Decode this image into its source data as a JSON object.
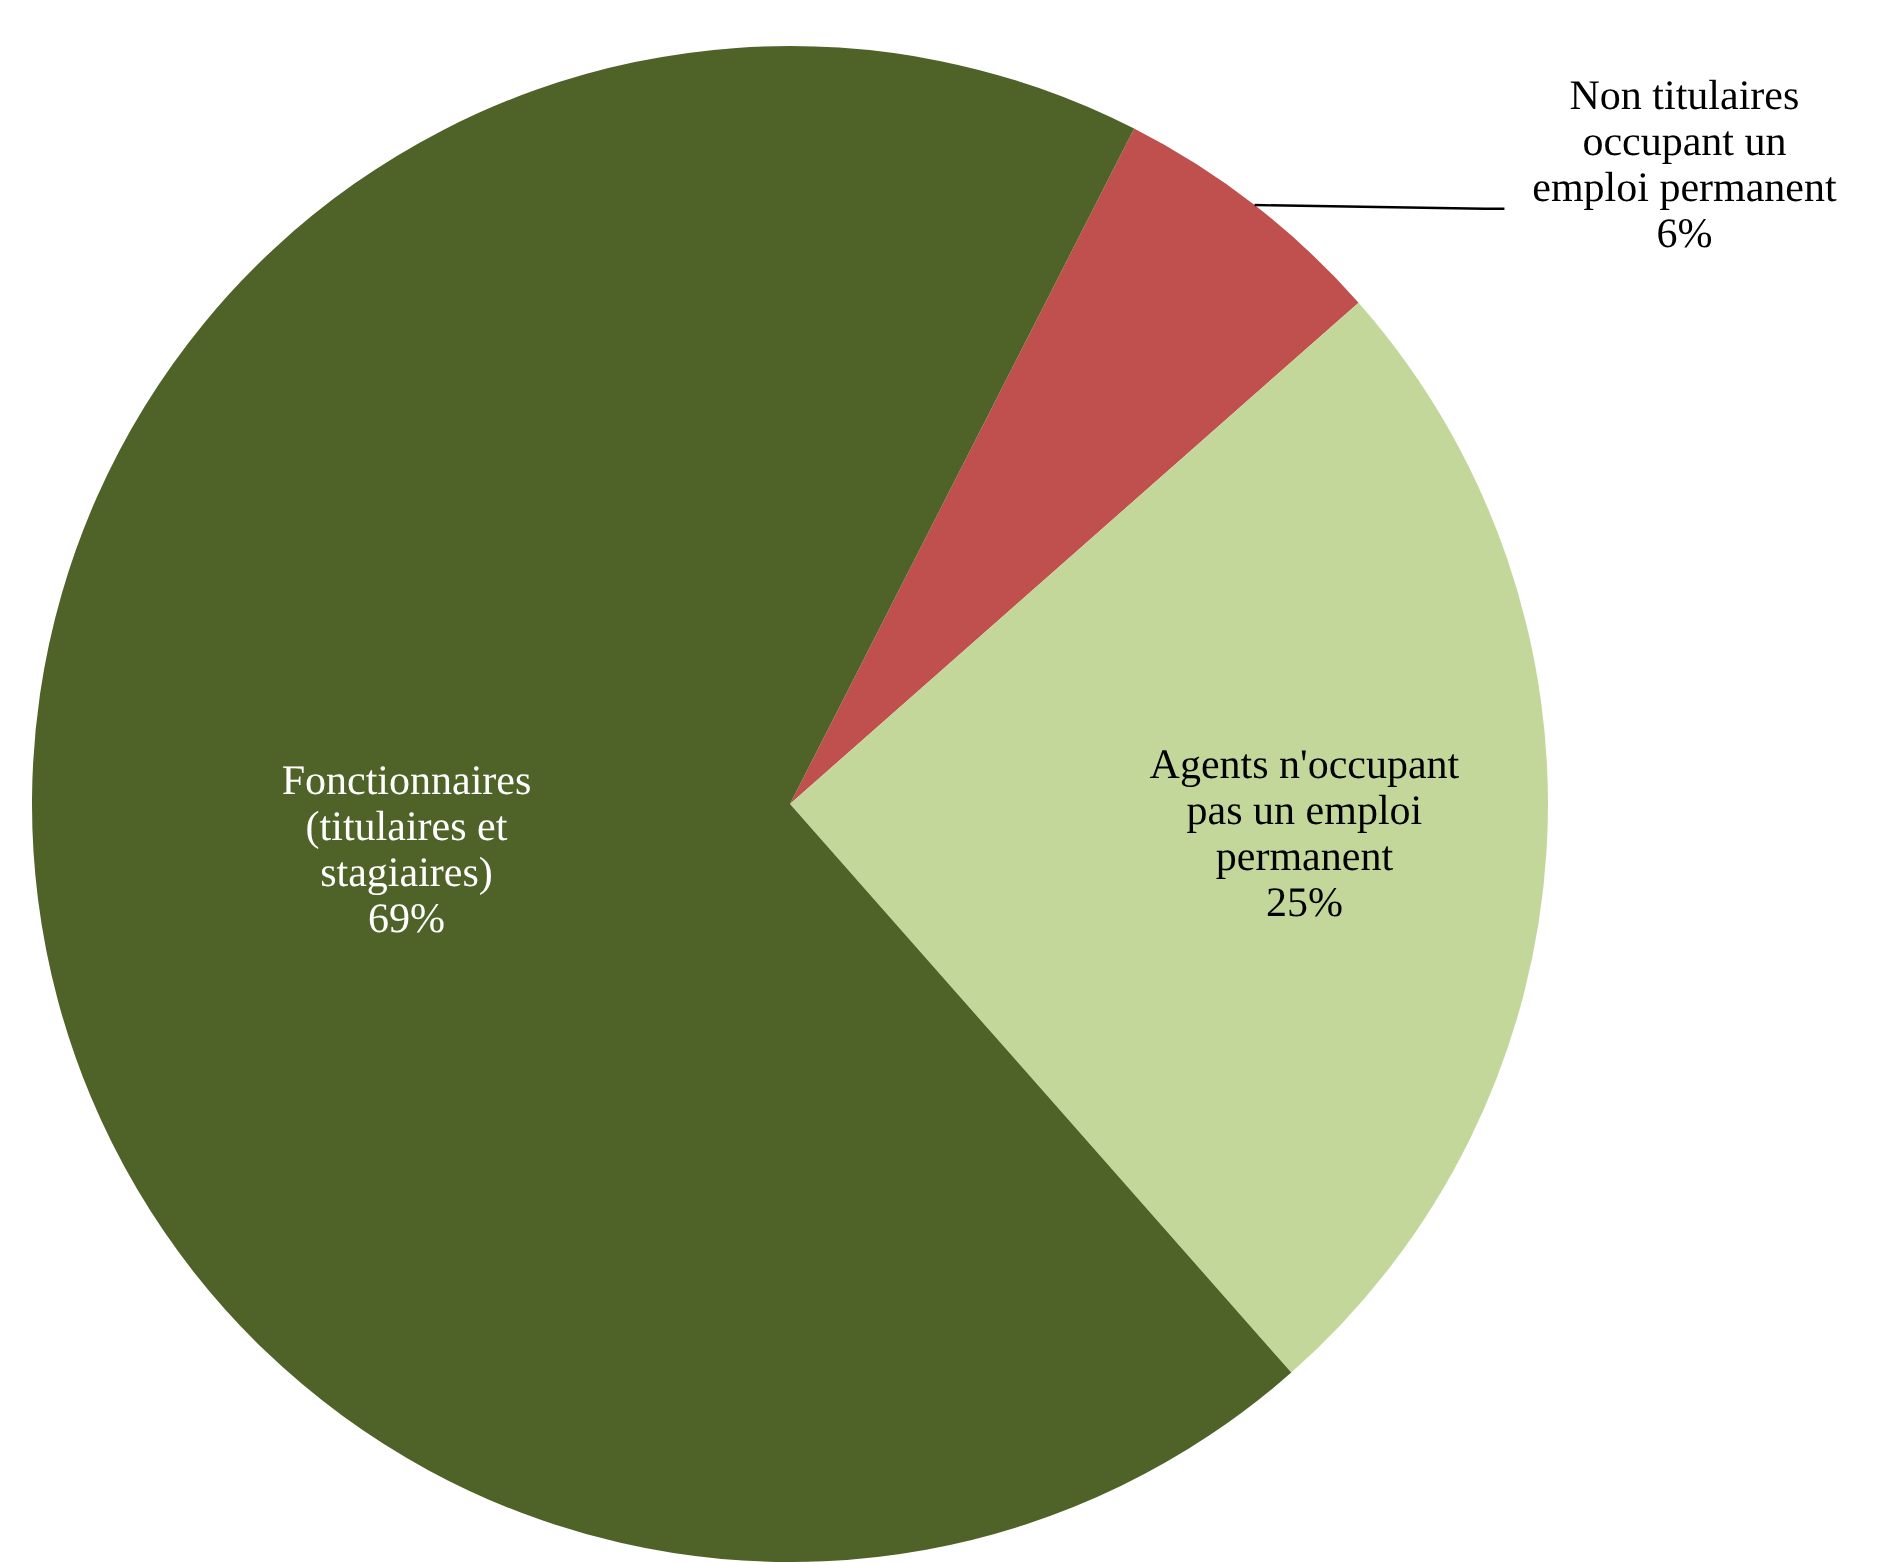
{
  "chart_data": {
    "type": "pie",
    "categories": [
      "Non titulaires occupant un emploi permanent",
      "Agents n'occupant pas un emploi permanent",
      "Fonctionnaires (titulaires et stagiaires)"
    ],
    "values": [
      6,
      25,
      69
    ],
    "colors": [
      "#c0504d",
      "#c4d79b",
      "#4f6228"
    ],
    "value_labels": [
      "6%",
      "25%",
      "69%"
    ],
    "legend": false
  }
}
